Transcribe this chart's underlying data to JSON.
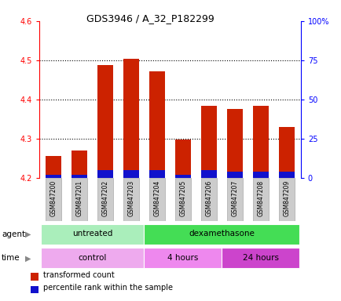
{
  "title": "GDS3946 / A_32_P182299",
  "samples": [
    "GSM847200",
    "GSM847201",
    "GSM847202",
    "GSM847203",
    "GSM847204",
    "GSM847205",
    "GSM847206",
    "GSM847207",
    "GSM847208",
    "GSM847209"
  ],
  "transformed_count": [
    4.255,
    4.27,
    4.487,
    4.503,
    4.472,
    4.298,
    4.383,
    4.375,
    4.383,
    4.33
  ],
  "percentile_rank": [
    2,
    2,
    5,
    5,
    5,
    2,
    5,
    4,
    4,
    4
  ],
  "ylim": [
    4.2,
    4.6
  ],
  "yticks_left": [
    4.2,
    4.3,
    4.4,
    4.5,
    4.6
  ],
  "yticks_right": [
    0,
    25,
    50,
    75,
    100
  ],
  "bar_width": 0.6,
  "red_color": "#cc2200",
  "blue_color": "#1111cc",
  "base": 4.2,
  "agent_groups": [
    {
      "label": "untreated",
      "start": 0,
      "end": 3,
      "color": "#aaeebb"
    },
    {
      "label": "dexamethasone",
      "start": 4,
      "end": 9,
      "color": "#44dd55"
    }
  ],
  "time_groups": [
    {
      "label": "control",
      "start": 0,
      "end": 3,
      "color": "#eeaaee"
    },
    {
      "label": "4 hours",
      "start": 4,
      "end": 6,
      "color": "#ee88ee"
    },
    {
      "label": "24 hours",
      "start": 7,
      "end": 9,
      "color": "#cc44cc"
    }
  ],
  "legend_red": "transformed count",
  "legend_blue": "percentile rank within the sample",
  "grid_lines": [
    4.3,
    4.4,
    4.5
  ],
  "label_box_color": "#cccccc",
  "label_box_edge": "#aaaaaa"
}
